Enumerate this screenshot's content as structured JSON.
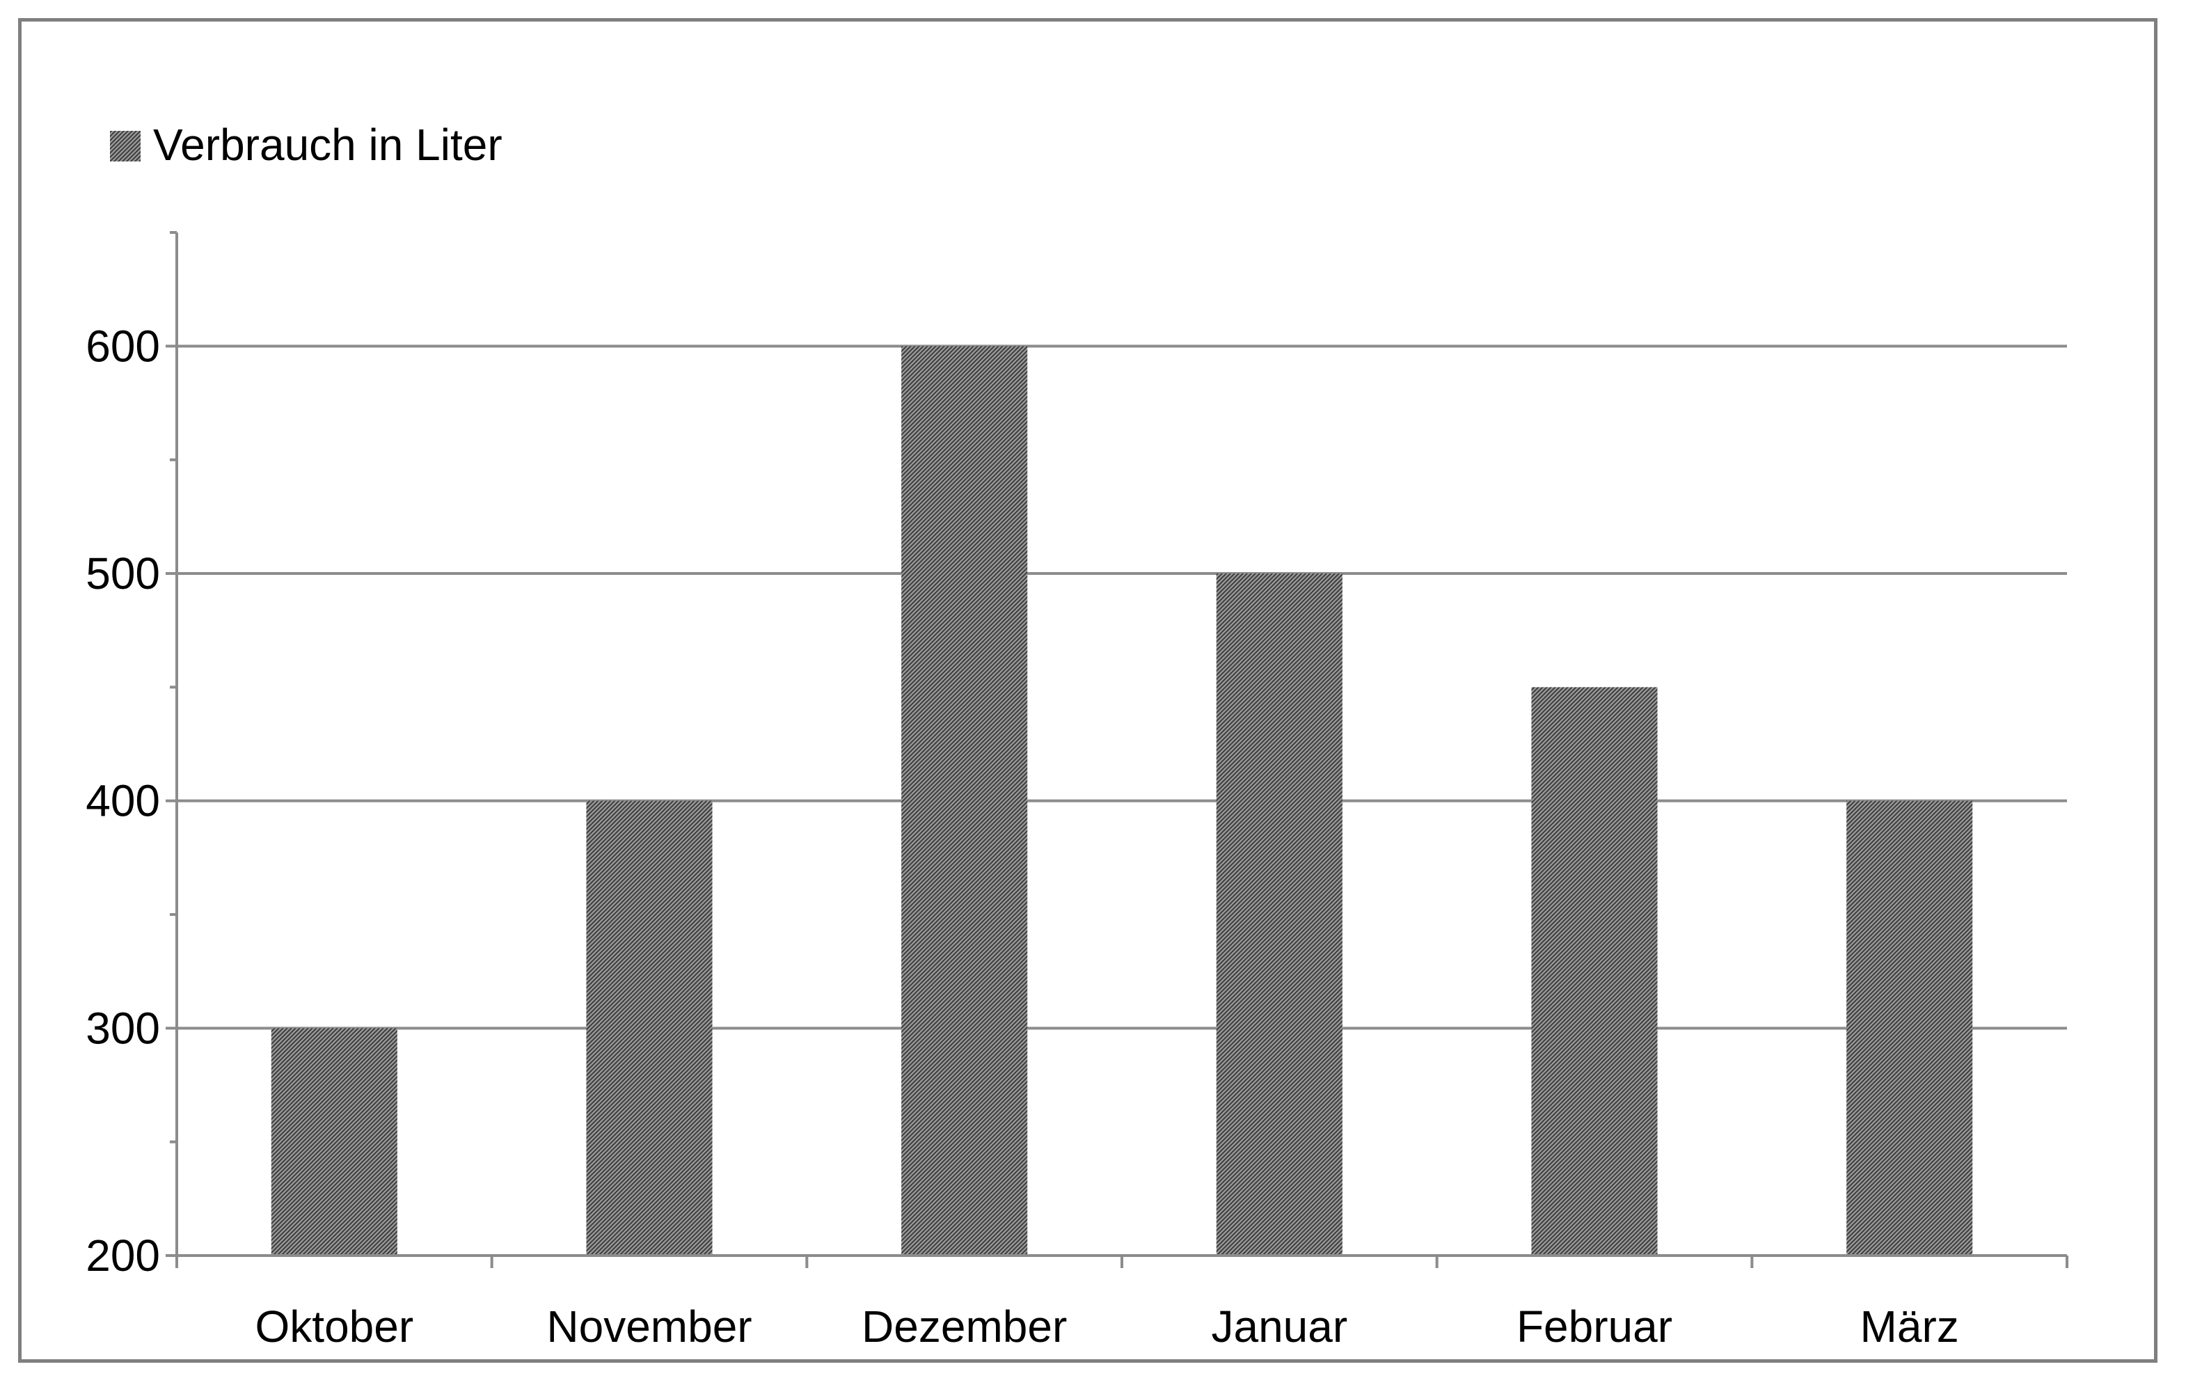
{
  "chart_data": {
    "type": "bar",
    "categories": [
      "Oktober",
      "November",
      "Dezember",
      "Januar",
      "Februar",
      "März"
    ],
    "series": [
      {
        "name": "Verbrauch in Liter",
        "values": [
          300,
          400,
          600,
          500,
          450,
          400
        ]
      }
    ],
    "yticks": [
      "200",
      "300",
      "400",
      "500",
      "600"
    ],
    "ylim": [
      200,
      650
    ],
    "ytick_step": 100,
    "grid": true,
    "legend": "top-left",
    "bar_color": "#6e6e6e",
    "axis_color": "#8c8c8c"
  }
}
